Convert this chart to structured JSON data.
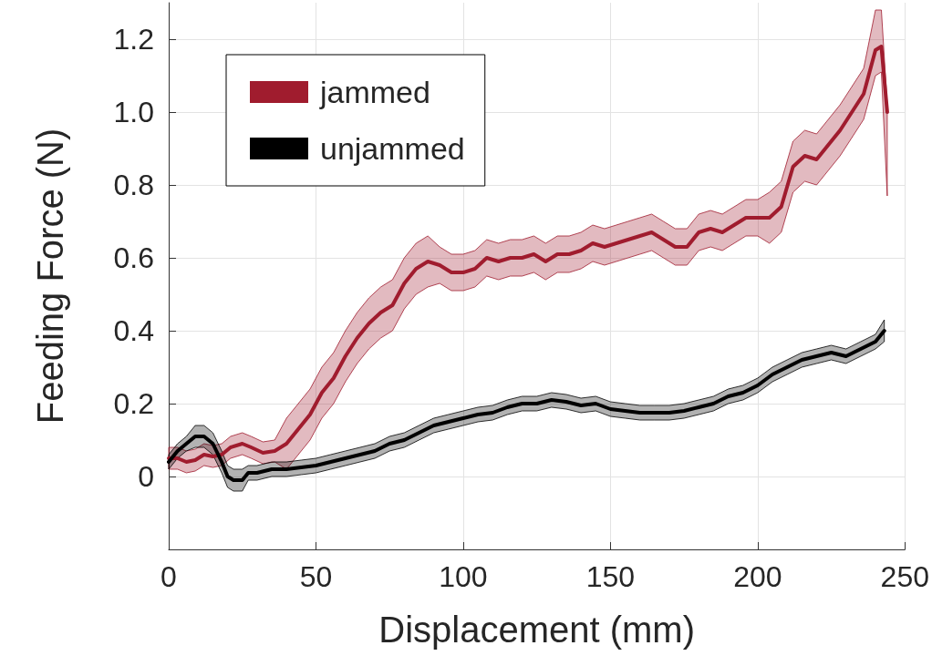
{
  "chart_data": {
    "type": "line",
    "xlabel": "Displacement (mm)",
    "ylabel": "Feeding Force (N)",
    "xlim": [
      0,
      250
    ],
    "xticks": [
      0,
      50,
      100,
      150,
      200,
      250
    ],
    "ylim": [
      -0.2,
      1.3
    ],
    "yticks": [
      {
        "value": -0.2,
        "label": null
      },
      0,
      0.2,
      0.4,
      0.6,
      0.8,
      {
        "value": 1,
        "label": "1.0"
      },
      1.2
    ],
    "grid": true,
    "legend": "top left",
    "marker": "none",
    "line_style": "solid",
    "series": [
      {
        "name": "jammed",
        "color": "#a01c2e",
        "x": [
          0,
          3,
          6,
          9,
          12,
          15,
          18,
          21,
          25,
          28,
          32,
          36,
          40,
          44,
          48,
          52,
          56,
          60,
          64,
          68,
          72,
          76,
          80,
          84,
          88,
          92,
          96,
          100,
          104,
          108,
          112,
          116,
          120,
          124,
          128,
          132,
          136,
          140,
          144,
          148,
          152,
          156,
          160,
          164,
          168,
          172,
          176,
          180,
          184,
          188,
          192,
          196,
          200,
          204,
          208,
          212,
          216,
          220,
          224,
          228,
          232,
          236,
          240,
          242,
          244
        ],
        "values": [
          0.05,
          0.05,
          0.04,
          0.045,
          0.06,
          0.055,
          0.06,
          0.08,
          0.09,
          0.08,
          0.065,
          0.07,
          0.09,
          0.13,
          0.17,
          0.23,
          0.27,
          0.33,
          0.38,
          0.42,
          0.45,
          0.47,
          0.53,
          0.57,
          0.59,
          0.58,
          0.56,
          0.56,
          0.57,
          0.6,
          0.59,
          0.6,
          0.6,
          0.61,
          0.59,
          0.61,
          0.61,
          0.62,
          0.64,
          0.63,
          0.64,
          0.65,
          0.66,
          0.67,
          0.65,
          0.63,
          0.63,
          0.67,
          0.68,
          0.67,
          0.69,
          0.71,
          0.71,
          0.71,
          0.74,
          0.85,
          0.88,
          0.87,
          0.91,
          0.95,
          1.0,
          1.05,
          1.17,
          1.18,
          1.0
        ],
        "lower": [
          0.02,
          0.02,
          0.01,
          0.015,
          0.03,
          0.025,
          0.03,
          0.05,
          0.06,
          0.05,
          0.035,
          0.04,
          0.02,
          0.06,
          0.1,
          0.16,
          0.2,
          0.26,
          0.31,
          0.35,
          0.38,
          0.4,
          0.46,
          0.5,
          0.52,
          0.53,
          0.51,
          0.51,
          0.52,
          0.55,
          0.54,
          0.55,
          0.55,
          0.56,
          0.54,
          0.56,
          0.56,
          0.57,
          0.59,
          0.58,
          0.59,
          0.6,
          0.61,
          0.62,
          0.6,
          0.58,
          0.58,
          0.62,
          0.63,
          0.62,
          0.64,
          0.66,
          0.66,
          0.64,
          0.67,
          0.78,
          0.81,
          0.8,
          0.84,
          0.88,
          0.93,
          0.98,
          1.1,
          1.11,
          0.77
        ],
        "upper": [
          0.08,
          0.08,
          0.07,
          0.075,
          0.09,
          0.085,
          0.09,
          0.11,
          0.12,
          0.11,
          0.095,
          0.1,
          0.16,
          0.2,
          0.24,
          0.3,
          0.34,
          0.4,
          0.45,
          0.49,
          0.52,
          0.54,
          0.6,
          0.64,
          0.66,
          0.63,
          0.61,
          0.61,
          0.62,
          0.65,
          0.64,
          0.65,
          0.65,
          0.66,
          0.64,
          0.66,
          0.66,
          0.67,
          0.69,
          0.68,
          0.69,
          0.7,
          0.71,
          0.72,
          0.7,
          0.68,
          0.68,
          0.72,
          0.73,
          0.72,
          0.74,
          0.76,
          0.76,
          0.78,
          0.81,
          0.92,
          0.95,
          0.94,
          0.98,
          1.02,
          1.07,
          1.12,
          1.28,
          1.28,
          1.02
        ]
      },
      {
        "name": "unjammed",
        "color": "#000000",
        "x": [
          0,
          3,
          6,
          9,
          12,
          15,
          18,
          20,
          22,
          25,
          27,
          30,
          35,
          40,
          45,
          50,
          55,
          60,
          65,
          70,
          75,
          80,
          85,
          90,
          95,
          100,
          105,
          110,
          115,
          120,
          125,
          130,
          135,
          140,
          145,
          150,
          155,
          160,
          165,
          170,
          175,
          180,
          185,
          190,
          195,
          200,
          205,
          210,
          215,
          220,
          225,
          230,
          235,
          240,
          243
        ],
        "values": [
          0.04,
          0.07,
          0.09,
          0.11,
          0.11,
          0.09,
          0.04,
          0.0,
          -0.01,
          -0.01,
          0.01,
          0.01,
          0.02,
          0.02,
          0.025,
          0.03,
          0.04,
          0.05,
          0.06,
          0.07,
          0.09,
          0.1,
          0.12,
          0.14,
          0.15,
          0.16,
          0.17,
          0.175,
          0.19,
          0.2,
          0.2,
          0.21,
          0.205,
          0.195,
          0.2,
          0.185,
          0.18,
          0.175,
          0.175,
          0.175,
          0.18,
          0.19,
          0.2,
          0.22,
          0.23,
          0.25,
          0.28,
          0.3,
          0.32,
          0.33,
          0.34,
          0.33,
          0.35,
          0.37,
          0.4
        ],
        "lower": [
          0.02,
          0.05,
          0.07,
          0.08,
          0.08,
          0.06,
          0.01,
          -0.03,
          -0.04,
          -0.04,
          -0.01,
          -0.01,
          0.0,
          0.0,
          0.005,
          0.01,
          0.02,
          0.03,
          0.04,
          0.05,
          0.07,
          0.08,
          0.1,
          0.12,
          0.13,
          0.14,
          0.15,
          0.155,
          0.17,
          0.18,
          0.18,
          0.19,
          0.185,
          0.175,
          0.18,
          0.165,
          0.16,
          0.155,
          0.155,
          0.155,
          0.16,
          0.17,
          0.18,
          0.2,
          0.21,
          0.23,
          0.26,
          0.28,
          0.3,
          0.31,
          0.32,
          0.31,
          0.33,
          0.35,
          0.37
        ],
        "upper": [
          0.06,
          0.09,
          0.11,
          0.14,
          0.14,
          0.12,
          0.07,
          0.03,
          0.02,
          0.02,
          0.03,
          0.03,
          0.04,
          0.04,
          0.045,
          0.05,
          0.06,
          0.07,
          0.08,
          0.09,
          0.11,
          0.12,
          0.14,
          0.16,
          0.17,
          0.18,
          0.19,
          0.195,
          0.21,
          0.22,
          0.22,
          0.23,
          0.225,
          0.215,
          0.22,
          0.205,
          0.2,
          0.195,
          0.195,
          0.195,
          0.2,
          0.21,
          0.22,
          0.24,
          0.25,
          0.27,
          0.3,
          0.32,
          0.34,
          0.35,
          0.36,
          0.35,
          0.37,
          0.39,
          0.43
        ]
      }
    ]
  }
}
